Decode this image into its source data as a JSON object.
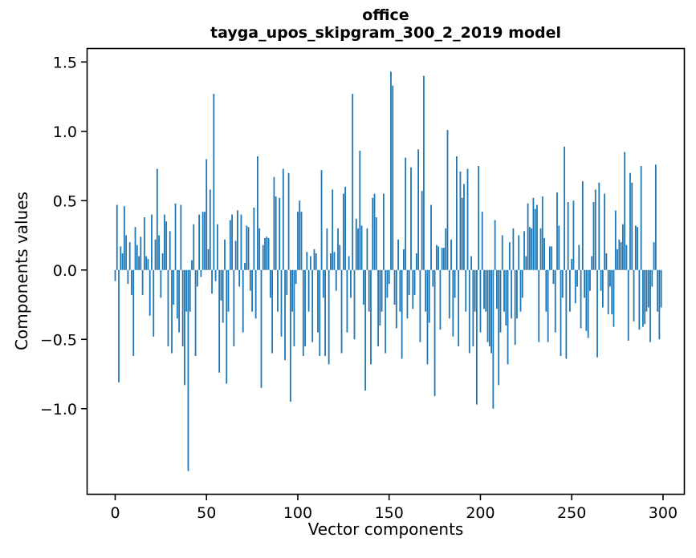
{
  "chart_data": {
    "type": "bar",
    "title": "office",
    "subtitle": "tayga_upos_skipgram_300_2_2019 model",
    "xlabel": "Vector components",
    "ylabel": "Components values",
    "bar_color": "#1f77b4",
    "axis_color": "#000000",
    "background_color": "#ffffff",
    "x_is_index": true,
    "n_components": 300,
    "x_ticks": [
      0,
      50,
      100,
      150,
      200,
      250,
      300
    ],
    "y_ticks": [
      1.5,
      1.0,
      0.5,
      0.0,
      -0.5,
      -1.0
    ],
    "xlim": [
      -15.6,
      311.9
    ],
    "ylim": [
      -1.62,
      1.6
    ],
    "grid": false,
    "legend": false,
    "values": [
      -0.08,
      0.47,
      -0.81,
      0.17,
      0.12,
      0.46,
      0.25,
      -0.1,
      0.2,
      -0.18,
      -0.62,
      0.31,
      0.18,
      0.1,
      0.24,
      -0.18,
      0.38,
      0.1,
      0.08,
      -0.33,
      0.4,
      -0.48,
      0.22,
      0.73,
      0.25,
      -0.2,
      0.12,
      0.4,
      0.35,
      -0.55,
      0.28,
      -0.6,
      -0.25,
      0.48,
      -0.35,
      -0.45,
      0.47,
      -0.55,
      -0.83,
      -0.3,
      -1.45,
      -0.3,
      0.07,
      0.33,
      -0.62,
      -0.12,
      0.4,
      -0.05,
      0.42,
      0.42,
      0.8,
      0.15,
      0.58,
      -0.17,
      1.27,
      -0.08,
      0.33,
      -0.74,
      -0.22,
      -0.38,
      0.22,
      -0.82,
      -0.3,
      0.36,
      0.4,
      -0.55,
      0.21,
      0.43,
      -0.12,
      0.4,
      -0.45,
      0.05,
      0.32,
      0.31,
      -0.15,
      -0.3,
      0.45,
      -0.35,
      0.82,
      0.3,
      -0.85,
      0.18,
      0.23,
      0.24,
      0.23,
      -0.2,
      -0.6,
      0.67,
      0.53,
      -0.3,
      0.52,
      -0.48,
      0.73,
      -0.65,
      -0.18,
      0.7,
      -0.95,
      -0.3,
      -0.55,
      -0.1,
      0.42,
      0.5,
      0.42,
      -0.62,
      -0.55,
      0.13,
      -0.3,
      0.1,
      -0.52,
      0.15,
      0.12,
      -0.45,
      -0.62,
      0.72,
      -0.2,
      -0.62,
      0.3,
      -0.68,
      0.12,
      0.58,
      0.13,
      -0.15,
      0.3,
      0.18,
      -0.6,
      0.55,
      0.6,
      -0.45,
      0.1,
      -0.2,
      1.27,
      -0.5,
      0.37,
      0.3,
      0.86,
      0.32,
      -0.25,
      -0.87,
      0.3,
      -0.3,
      -0.68,
      0.52,
      0.55,
      0.38,
      -0.55,
      -0.4,
      -0.3,
      0.55,
      -0.6,
      -0.2,
      -0.1,
      1.43,
      1.33,
      -0.25,
      -0.42,
      0.22,
      -0.3,
      -0.64,
      0.15,
      0.81,
      -0.35,
      -0.18,
      0.74,
      -0.28,
      -0.18,
      0.12,
      0.87,
      -0.52,
      0.57,
      1.4,
      -0.3,
      -0.68,
      -0.38,
      0.47,
      -0.12,
      -0.91,
      0.18,
      0.17,
      -0.43,
      0.16,
      0.16,
      0.3,
      1.01,
      -0.35,
      0.22,
      -0.48,
      -0.2,
      0.82,
      -0.55,
      0.71,
      0.52,
      0.62,
      -0.3,
      0.73,
      -0.6,
      0.1,
      -0.55,
      -0.3,
      -0.97,
      0.75,
      -0.45,
      0.42,
      -0.28,
      -0.3,
      -0.52,
      -0.55,
      -0.6,
      -1.0,
      0.36,
      -0.28,
      -0.83,
      -0.45,
      0.25,
      -0.3,
      -0.4,
      -0.68,
      0.2,
      -0.35,
      0.3,
      -0.54,
      -0.35,
      0.25,
      -0.3,
      -0.2,
      0.28,
      0.1,
      0.48,
      0.31,
      0.3,
      0.52,
      0.44,
      0.47,
      -0.52,
      0.3,
      0.53,
      0.23,
      -0.3,
      -0.52,
      0.17,
      0.17,
      -0.1,
      -0.45,
      0.56,
      0.32,
      -0.62,
      -0.2,
      0.89,
      -0.64,
      0.49,
      -0.3,
      0.08,
      0.5,
      -0.24,
      -0.12,
      0.18,
      -0.42,
      0.64,
      -0.2,
      -0.44,
      -0.49,
      -0.15,
      0.1,
      0.49,
      0.58,
      -0.63,
      0.63,
      -0.15,
      -0.27,
      0.55,
      0.12,
      -0.32,
      -0.12,
      -0.32,
      -0.41,
      0.43,
      0.15,
      0.22,
      0.2,
      0.33,
      0.85,
      0.18,
      -0.51,
      0.7,
      0.63,
      -0.37,
      0.32,
      0.31,
      -0.43,
      0.75,
      -0.41,
      -0.39,
      -0.3,
      -0.27,
      -0.52,
      -0.12,
      0.2,
      0.76,
      -0.3,
      -0.5,
      -0.27
    ]
  }
}
